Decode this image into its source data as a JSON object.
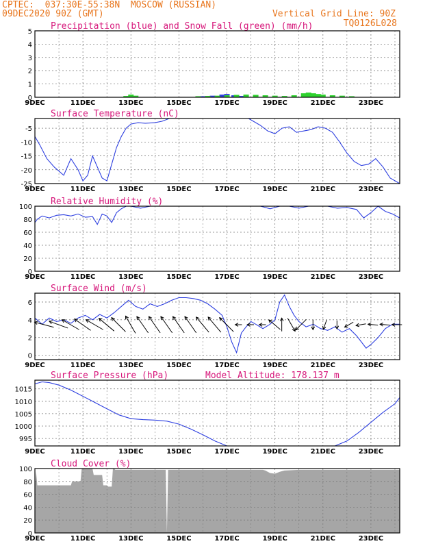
{
  "header": {
    "line1_left": "CPTEC:  037:30E-55:38N  MOSCOW (RUSSIAN)",
    "line2_left": "09DEC2020 90Z (GMT)",
    "line2_right": "Vertical Grid Line: 90Z",
    "line3_right": "TQ0126L028"
  },
  "colors": {
    "title": "#d6167a",
    "header": "#e8761e",
    "series": "#2d3fe0",
    "snow": "#2fd22f",
    "precip": "#2d3fe0",
    "cloud": "#a6a6a6",
    "grid": "#7a7a7a"
  },
  "chart_data": [
    {
      "type": "bar",
      "title": "Precipitation (blue) and Snow Fall (green) (mm/h)",
      "x_ticks": [
        "9DEC",
        "11DEC",
        "13DEC",
        "15DEC",
        "17DEC",
        "19DEC",
        "21DEC",
        "23DEC"
      ],
      "y_ticks": [
        "0",
        "1",
        "2",
        "3",
        "4",
        "5"
      ],
      "ylim": [
        0,
        5
      ],
      "xlim": [
        9.0,
        24.2
      ],
      "series": [
        {
          "name": "Precipitation",
          "x": [
            16.0,
            16.4,
            16.8,
            17.0,
            17.3,
            17.6
          ],
          "values": [
            0.08,
            0.12,
            0.2,
            0.25,
            0.15,
            0.1
          ]
        },
        {
          "name": "Snow Fall",
          "x": [
            12.8,
            13.0,
            13.2,
            15.8,
            16.2,
            16.6,
            17.0,
            17.4,
            17.8,
            18.2,
            18.6,
            19.0,
            19.4,
            19.8,
            20.2,
            20.4,
            20.6,
            20.8,
            21.0,
            21.4,
            21.8,
            22.2
          ],
          "values": [
            0.1,
            0.2,
            0.12,
            0.08,
            0.1,
            0.12,
            0.15,
            0.18,
            0.2,
            0.18,
            0.15,
            0.12,
            0.1,
            0.15,
            0.3,
            0.35,
            0.3,
            0.25,
            0.2,
            0.15,
            0.12,
            0.08
          ]
        }
      ]
    },
    {
      "type": "line",
      "title": "Surface Temperature (nC)",
      "x_ticks": [
        "9DEC",
        "11DEC",
        "13DEC",
        "15DEC",
        "17DEC",
        "19DEC",
        "21DEC",
        "23DEC"
      ],
      "y_ticks": [
        "-25",
        "-20",
        "-15",
        "-10",
        "-5"
      ],
      "ylim": [
        -25,
        -1.5
      ],
      "xlim": [
        9.0,
        24.2
      ],
      "series": [
        {
          "name": "",
          "x": [
            9.0,
            9.2,
            9.5,
            9.8,
            10.2,
            10.5,
            10.8,
            11.0,
            11.2,
            11.4,
            11.6,
            11.8,
            12.0,
            12.2,
            12.4,
            12.6,
            12.8,
            13.0,
            13.3,
            13.6,
            14.0,
            14.3,
            14.6,
            14.9,
            15.2,
            15.5,
            15.8,
            16.1,
            16.4,
            16.7,
            17.0,
            17.3,
            17.6,
            17.9,
            18.1,
            18.4,
            18.7,
            19.0,
            19.3,
            19.6,
            19.9,
            20.2,
            20.5,
            20.8,
            21.1,
            21.4,
            21.7,
            22.0,
            22.3,
            22.6,
            22.9,
            23.2,
            23.5,
            23.8,
            24.2
          ],
          "values": [
            -8,
            -11,
            -16,
            -19,
            -22,
            -16,
            -20,
            -24,
            -22,
            -15,
            -19,
            -23,
            -24,
            -18,
            -12,
            -8,
            -5,
            -3.5,
            -3,
            -3.2,
            -3,
            -2.5,
            -1.5,
            null,
            null,
            null,
            null,
            null,
            null,
            null,
            null,
            null,
            null,
            -1.5,
            -2.5,
            -4,
            -6,
            -7,
            -5,
            -4.5,
            -6.5,
            -6,
            -5.5,
            -4.5,
            -5,
            -6.5,
            -10,
            -14,
            -17,
            -18.5,
            -18,
            -16,
            -19,
            -23,
            -25
          ]
        }
      ]
    },
    {
      "type": "line",
      "title": "Relative Humidity (%)",
      "x_ticks": [
        "9DEC",
        "11DEC",
        "13DEC",
        "15DEC",
        "17DEC",
        "19DEC",
        "21DEC",
        "23DEC"
      ],
      "y_ticks": [
        "0",
        "20",
        "40",
        "60",
        "80",
        "100"
      ],
      "ylim": [
        0,
        100
      ],
      "xlim": [
        9.0,
        24.2
      ],
      "series": [
        {
          "name": "",
          "x": [
            9.0,
            9.1,
            9.3,
            9.6,
            9.9,
            10.2,
            10.5,
            10.8,
            11.1,
            11.4,
            11.6,
            11.8,
            12.0,
            12.2,
            12.4,
            12.6,
            12.8,
            13.0,
            13.4,
            13.8,
            14.2,
            14.6,
            15.0,
            15.5,
            16.0,
            16.5,
            17.0,
            17.5,
            18.0,
            18.4,
            18.8,
            19.2,
            19.6,
            20.0,
            20.4,
            20.8,
            21.2,
            21.6,
            22.0,
            22.4,
            22.7,
            23.0,
            23.3,
            23.6,
            23.9,
            24.2
          ],
          "values": [
            75,
            80,
            85,
            82,
            86,
            87,
            85,
            88,
            83,
            84,
            72,
            88,
            85,
            75,
            90,
            96,
            100,
            100,
            97,
            100,
            100,
            100,
            100,
            100,
            100,
            100,
            100,
            100,
            100,
            100,
            96,
            100,
            100,
            97,
            100,
            100,
            100,
            97,
            98,
            95,
            82,
            90,
            100,
            92,
            88,
            82
          ]
        }
      ]
    },
    {
      "type": "line",
      "title": "Surface Wind (m/s)",
      "x_ticks": [
        "9DEC",
        "11DEC",
        "13DEC",
        "15DEC",
        "17DEC",
        "19DEC",
        "21DEC",
        "23DEC"
      ],
      "y_ticks": [
        "0",
        "2",
        "4",
        "6"
      ],
      "ylim": [
        -0.5,
        7
      ],
      "xlim": [
        9.0,
        24.2
      ],
      "series": [
        {
          "name": "",
          "x": [
            9.0,
            9.3,
            9.6,
            9.9,
            10.2,
            10.5,
            10.8,
            11.1,
            11.4,
            11.7,
            12.0,
            12.3,
            12.6,
            12.9,
            13.2,
            13.5,
            13.8,
            14.1,
            14.4,
            14.7,
            15.0,
            15.3,
            15.6,
            15.9,
            16.2,
            16.5,
            16.8,
            17.0,
            17.2,
            17.4,
            17.6,
            17.8,
            18.0,
            18.2,
            18.5,
            18.8,
            19.0,
            19.2,
            19.4,
            19.6,
            19.8,
            20.0,
            20.3,
            20.6,
            20.9,
            21.2,
            21.5,
            21.8,
            22.1,
            22.4,
            22.6,
            22.8,
            23.0,
            23.3,
            23.6,
            23.9,
            24.2
          ],
          "values": [
            4.2,
            3.5,
            4.2,
            3.8,
            4.0,
            3.6,
            4.2,
            4.5,
            4.0,
            4.6,
            4.2,
            4.8,
            5.5,
            6.2,
            5.5,
            5.2,
            5.8,
            5.5,
            5.8,
            6.2,
            6.5,
            6.5,
            6.4,
            6.2,
            5.8,
            5.2,
            4.5,
            3.2,
            1.5,
            0.3,
            2.5,
            3.2,
            3.8,
            3.5,
            3.0,
            3.5,
            4.0,
            6.0,
            6.8,
            5.5,
            4.5,
            3.8,
            3.2,
            3.5,
            3.0,
            2.8,
            3.2,
            2.6,
            3.0,
            2.2,
            1.5,
            0.8,
            1.2,
            2.0,
            3.0,
            3.5,
            3.5
          ]
        }
      ]
    },
    {
      "type": "line",
      "title": "Surface Pressure (hPa)",
      "subtitle": "Model Altitude: 178.137 m",
      "x_ticks": [
        "9DEC",
        "11DEC",
        "13DEC",
        "15DEC",
        "17DEC",
        "19DEC",
        "21DEC",
        "23DEC"
      ],
      "y_ticks": [
        "995",
        "1000",
        "1005",
        "1010",
        "1015"
      ],
      "ylim": [
        992,
        1018.5
      ],
      "xlim": [
        9.0,
        24.2
      ],
      "series": [
        {
          "name": "",
          "x": [
            9.0,
            9.3,
            9.6,
            10.0,
            10.5,
            11.0,
            11.5,
            12.0,
            12.5,
            13.0,
            13.5,
            14.0,
            14.5,
            15.0,
            15.5,
            16.0,
            16.5,
            17.0,
            17.5,
            18.0,
            18.5,
            19.0,
            19.5,
            20.0,
            20.5,
            21.0,
            21.5,
            22.0,
            22.5,
            23.0,
            23.5,
            24.0,
            24.2
          ],
          "values": [
            1017,
            1017.8,
            1017.5,
            1016.5,
            1014.5,
            1012,
            1009.5,
            1007,
            1004.5,
            1003,
            1002.6,
            1002.4,
            1002,
            1000.8,
            998.8,
            996.5,
            994,
            991.5,
            989,
            null,
            null,
            null,
            null,
            null,
            null,
            null,
            991.5,
            994,
            997.5,
            1001.5,
            1005.5,
            1009,
            1011.5
          ]
        }
      ]
    },
    {
      "type": "area",
      "title": "Cloud Cover (%)",
      "x_ticks": [
        "9DEC",
        "11DEC",
        "13DEC",
        "15DEC",
        "17DEC",
        "19DEC",
        "21DEC",
        "23DEC"
      ],
      "y_ticks": [
        "0",
        "20",
        "40",
        "60",
        "80",
        "100"
      ],
      "ylim": [
        0,
        100
      ],
      "xlim": [
        9.0,
        24.2
      ],
      "series": [
        {
          "name": "",
          "x": [
            9.0,
            9.05,
            9.1,
            10.5,
            10.55,
            10.9,
            10.95,
            11.4,
            11.45,
            11.8,
            11.85,
            12.0,
            12.05,
            12.2,
            12.25,
            12.3,
            12.35,
            13.0,
            14.0,
            14.45,
            14.5,
            14.55,
            15.0,
            17.0,
            18.5,
            18.6,
            18.8,
            19.0,
            19.2,
            19.4,
            20.0,
            22.0,
            24.2
          ],
          "values": [
            70,
            95,
            74,
            74,
            80,
            80,
            100,
            100,
            90,
            90,
            74,
            74,
            72,
            72,
            100,
            100,
            98,
            98,
            98,
            98,
            0,
            98,
            98,
            98,
            98,
            97,
            93,
            92,
            95,
            97,
            98,
            98,
            98
          ]
        }
      ]
    }
  ],
  "wind_arrows": [
    {
      "x": 9.1,
      "dir_deg": 165,
      "len": 1.0
    },
    {
      "x": 9.7,
      "dir_deg": 160,
      "len": 1.0
    },
    {
      "x": 10.2,
      "dir_deg": 150,
      "len": 1.0
    },
    {
      "x": 10.7,
      "dir_deg": 145,
      "len": 1.0
    },
    {
      "x": 11.2,
      "dir_deg": 150,
      "len": 1.0
    },
    {
      "x": 11.7,
      "dir_deg": 140,
      "len": 1.0
    },
    {
      "x": 12.2,
      "dir_deg": 135,
      "len": 1.0
    },
    {
      "x": 12.7,
      "dir_deg": 120,
      "len": 1.0
    },
    {
      "x": 13.2,
      "dir_deg": 125,
      "len": 1.0
    },
    {
      "x": 13.7,
      "dir_deg": 125,
      "len": 1.0
    },
    {
      "x": 14.2,
      "dir_deg": 125,
      "len": 1.0
    },
    {
      "x": 14.7,
      "dir_deg": 125,
      "len": 1.0
    },
    {
      "x": 15.2,
      "dir_deg": 125,
      "len": 1.0
    },
    {
      "x": 15.7,
      "dir_deg": 130,
      "len": 1.0
    },
    {
      "x": 16.2,
      "dir_deg": 130,
      "len": 1.0
    },
    {
      "x": 16.7,
      "dir_deg": 135,
      "len": 1.0
    },
    {
      "x": 17.2,
      "dir_deg": 180,
      "len": 0.2
    },
    {
      "x": 17.7,
      "dir_deg": 180,
      "len": 0.2
    },
    {
      "x": 18.2,
      "dir_deg": 180,
      "len": 0.2
    },
    {
      "x": 18.7,
      "dir_deg": 140,
      "len": 0.7
    },
    {
      "x": 19.0,
      "dir_deg": 90,
      "len": 0.6
    },
    {
      "x": 19.4,
      "dir_deg": 300,
      "len": 0.7
    },
    {
      "x": 19.8,
      "dir_deg": 225,
      "len": 0.7
    },
    {
      "x": 20.3,
      "dir_deg": 270,
      "len": 0.4
    },
    {
      "x": 20.8,
      "dir_deg": 250,
      "len": 0.4
    },
    {
      "x": 21.3,
      "dir_deg": 270,
      "len": 0.3
    },
    {
      "x": 21.8,
      "dir_deg": 210,
      "len": 0.4
    },
    {
      "x": 22.3,
      "dir_deg": 190,
      "len": 0.4
    },
    {
      "x": 22.8,
      "dir_deg": 175,
      "len": 0.4
    },
    {
      "x": 23.3,
      "dir_deg": 175,
      "len": 0.4
    },
    {
      "x": 23.8,
      "dir_deg": 180,
      "len": 0.4
    }
  ]
}
